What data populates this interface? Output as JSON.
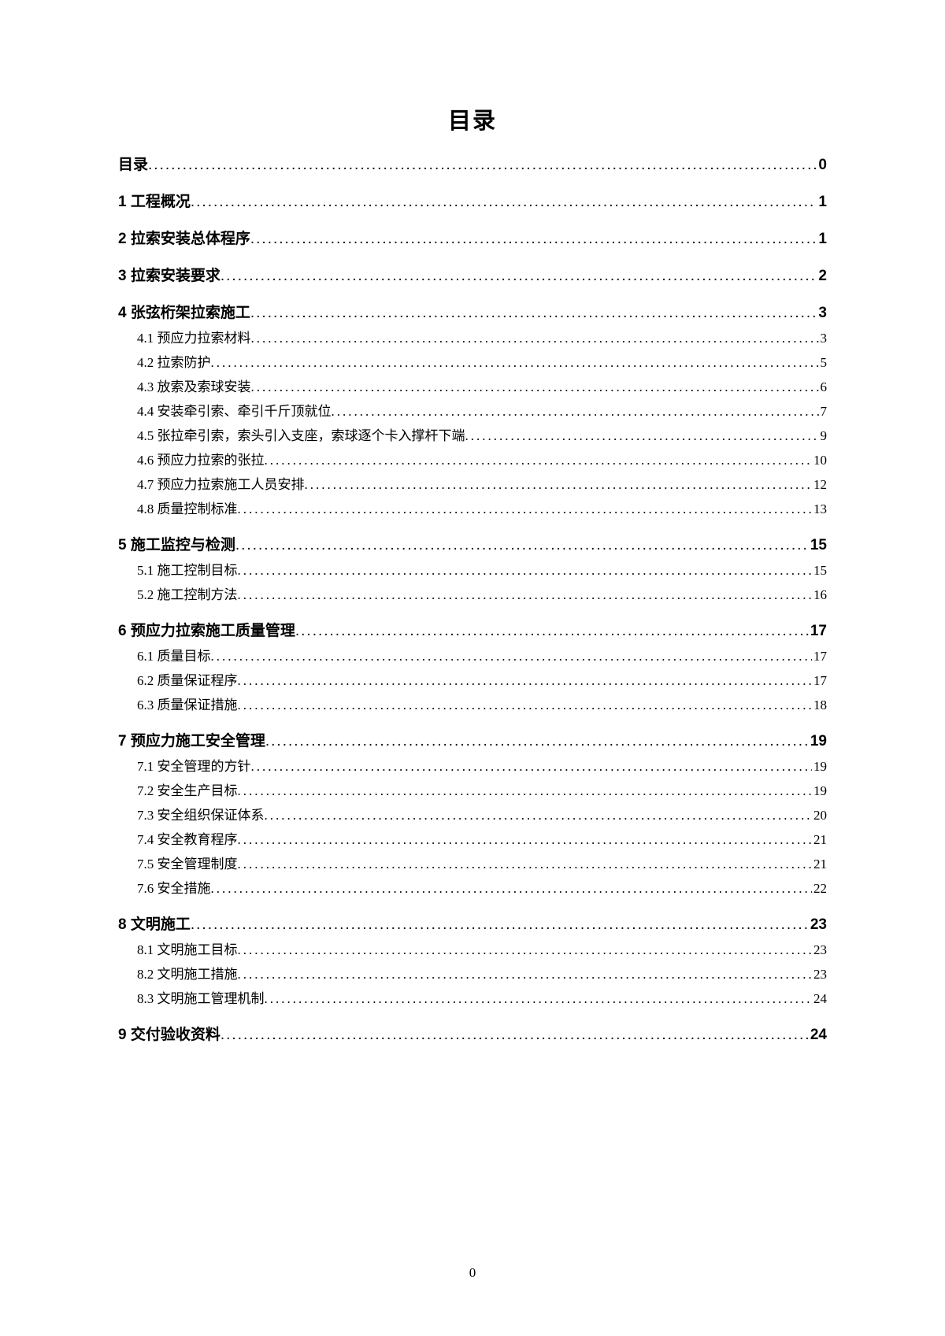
{
  "title": "目录",
  "pageNumber": "0",
  "dotsFill": "......................................................................................................................................................................................................................................................",
  "entries": [
    {
      "level": 1,
      "text": "目录",
      "page": "0"
    },
    {
      "level": 1,
      "text": "1 工程概况",
      "page": "1"
    },
    {
      "level": 1,
      "text": "2 拉索安装总体程序",
      "page": "1"
    },
    {
      "level": 1,
      "text": "3 拉索安装要求",
      "page": "2"
    },
    {
      "level": 1,
      "text": "4 张弦桁架拉索施工",
      "page": "3"
    },
    {
      "level": 2,
      "text": "4.1 预应力拉索材料",
      "page": "3"
    },
    {
      "level": 2,
      "text": "4.2 拉索防护",
      "page": "5"
    },
    {
      "level": 2,
      "text": "4.3 放索及索球安装",
      "page": "6"
    },
    {
      "level": 2,
      "text": "4.4 安装牵引索、牵引千斤顶就位",
      "page": "7"
    },
    {
      "level": 2,
      "text": "4.5 张拉牵引索，索头引入支座，索球逐个卡入撑杆下端",
      "page": "9"
    },
    {
      "level": 2,
      "text": "4.6 预应力拉索的张拉",
      "page": "10"
    },
    {
      "level": 2,
      "text": "4.7 预应力拉索施工人员安排",
      "page": "12"
    },
    {
      "level": 2,
      "text": "4.8 质量控制标准",
      "page": "13"
    },
    {
      "level": 1,
      "text": "5 施工监控与检测",
      "page": "15"
    },
    {
      "level": 2,
      "text": "5.1 施工控制目标",
      "page": "15"
    },
    {
      "level": 2,
      "text": "5.2 施工控制方法",
      "page": "16"
    },
    {
      "level": 1,
      "text": "6 预应力拉索施工质量管理",
      "page": "17"
    },
    {
      "level": 2,
      "text": "6.1 质量目标",
      "page": "17"
    },
    {
      "level": 2,
      "text": "6.2 质量保证程序",
      "page": "17"
    },
    {
      "level": 2,
      "text": "6.3 质量保证措施",
      "page": "18"
    },
    {
      "level": 1,
      "text": "7 预应力施工安全管理",
      "page": "19"
    },
    {
      "level": 2,
      "text": "7.1 安全管理的方针",
      "page": "19"
    },
    {
      "level": 2,
      "text": "7.2 安全生产目标",
      "page": "19"
    },
    {
      "level": 2,
      "text": "7.3 安全组织保证体系",
      "page": "20"
    },
    {
      "level": 2,
      "text": "7.4 安全教育程序",
      "page": "21"
    },
    {
      "level": 2,
      "text": "7.5 安全管理制度",
      "page": "21"
    },
    {
      "level": 2,
      "text": "7.6 安全措施",
      "page": "22"
    },
    {
      "level": 1,
      "text": "8 文明施工",
      "page": "23"
    },
    {
      "level": 2,
      "text": "8.1 文明施工目标",
      "page": "23"
    },
    {
      "level": 2,
      "text": "8.2 文明施工措施",
      "page": "23"
    },
    {
      "level": 2,
      "text": "8.3 文明施工管理机制",
      "page": "24"
    },
    {
      "level": 1,
      "text": "9 交付验收资料",
      "page": "24"
    }
  ]
}
